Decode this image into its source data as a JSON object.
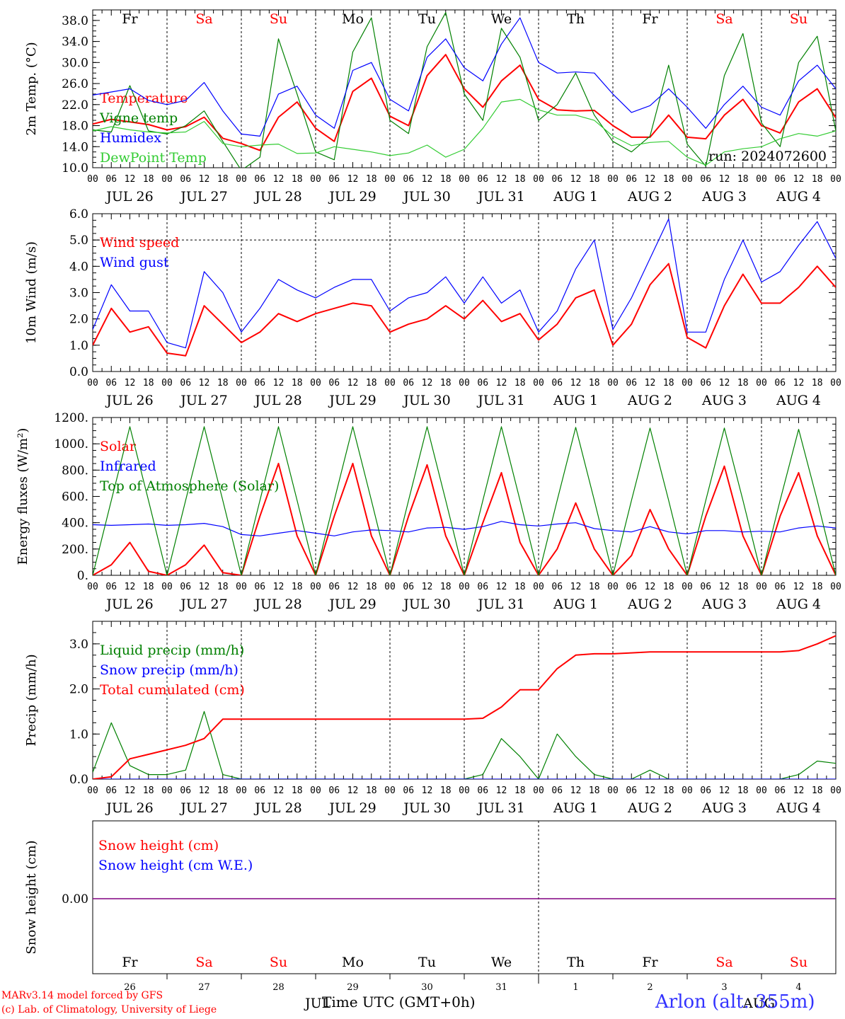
{
  "run_label": "run: 2024072600",
  "day_header": [
    {
      "label": "Fr",
      "weekend": false
    },
    {
      "label": "Sa",
      "weekend": true
    },
    {
      "label": "Su",
      "weekend": true
    },
    {
      "label": "Mo",
      "weekend": false
    },
    {
      "label": "Tu",
      "weekend": false
    },
    {
      "label": "We",
      "weekend": false
    },
    {
      "label": "Th",
      "weekend": false
    },
    {
      "label": "Fr",
      "weekend": false
    },
    {
      "label": "Sa",
      "weekend": true
    },
    {
      "label": "Su",
      "weekend": true
    }
  ],
  "date_labels": [
    "JUL 26",
    "JUL 27",
    "JUL 28",
    "JUL 29",
    "JUL 30",
    "JUL 31",
    "AUG  1",
    "AUG  2",
    "AUG  3",
    "AUG  4"
  ],
  "hour_labels": [
    "00",
    "06",
    "12",
    "18"
  ],
  "bottom_day_numbers": [
    "26",
    "27",
    "28",
    "29",
    "30",
    "31",
    "1",
    "2",
    "3",
    "4"
  ],
  "bottom_month_labels": [
    "JUL",
    "AUG"
  ],
  "xlabel": "Time UTC (GMT+0h)",
  "footer": {
    "line1": "MARv3.14 model forced by GFS",
    "line2": "(c) Lab. of Climatology, University of Liege",
    "station": "Arlon (alt. 355m)"
  },
  "colors": {
    "red": "#ff0000",
    "blue": "#0000ff",
    "green": "#008000",
    "lightgreen": "#33cc33",
    "purple": "#800080"
  },
  "chart_data": [
    {
      "type": "line",
      "ylabel": "2m Temp. (°C)",
      "ylim": [
        10,
        40
      ],
      "yticks": [
        "10.0",
        "14.0",
        "18.0",
        "22.0",
        "26.0",
        "30.0",
        "34.0",
        "38.0"
      ],
      "x_hours": [
        0,
        6,
        12,
        18,
        24,
        30,
        36,
        42,
        48,
        54,
        60,
        66,
        72,
        78,
        84,
        90,
        96,
        102,
        108,
        114,
        120,
        126,
        132,
        138,
        144,
        150,
        156,
        162,
        168,
        174,
        180,
        186,
        192,
        198,
        204,
        210,
        216,
        222,
        228,
        234,
        240
      ],
      "series": [
        {
          "name": "Temperature",
          "color": "red",
          "values": [
            18.3,
            19.2,
            18.7,
            18.2,
            17.2,
            17.8,
            19.6,
            15.6,
            14.6,
            13.3,
            19.6,
            22.5,
            17.5,
            15.0,
            24.5,
            27.0,
            19.8,
            18.0,
            27.5,
            31.5,
            25.0,
            21.5,
            26.5,
            29.5,
            23.0,
            21.0,
            20.8,
            20.9,
            18.0,
            15.8,
            15.8,
            20.0,
            15.8,
            15.5,
            20.0,
            23.0,
            18.0,
            16.6,
            22.5,
            25.0,
            19.5
          ]
        },
        {
          "name": "Vigne temp",
          "color": "green",
          "values": [
            17.2,
            16.8,
            25.6,
            17.0,
            16.4,
            18.0,
            20.8,
            15.0,
            9.5,
            12.0,
            34.5,
            24.0,
            13.0,
            11.5,
            32.0,
            38.5,
            19.0,
            16.5,
            33.0,
            39.5,
            24.0,
            19.0,
            36.5,
            31.0,
            19.0,
            22.0,
            28.0,
            20.0,
            15.0,
            13.0,
            16.0,
            29.5,
            14.5,
            10.3,
            27.5,
            35.5,
            18.5,
            14.0,
            30.0,
            35.0,
            17.0
          ]
        },
        {
          "name": "Humidex",
          "color": "blue",
          "values": [
            23.8,
            24.4,
            25.0,
            22.8,
            22.0,
            22.8,
            26.2,
            20.8,
            16.4,
            16.0,
            24.0,
            25.5,
            20.0,
            17.5,
            28.5,
            30.0,
            23.0,
            20.8,
            31.0,
            34.5,
            29.0,
            26.5,
            33.5,
            38.5,
            30.0,
            28.0,
            28.2,
            28.0,
            24.0,
            20.5,
            21.8,
            25.0,
            21.5,
            17.5,
            22.0,
            25.5,
            21.5,
            20.0,
            26.5,
            29.5,
            25.0
          ]
        },
        {
          "name": "DewPoint Temp",
          "color": "lightgreen",
          "values": [
            17.0,
            17.8,
            17.2,
            16.8,
            16.6,
            16.8,
            18.8,
            14.6,
            14.0,
            14.3,
            14.5,
            12.7,
            12.8,
            14.0,
            13.5,
            13.0,
            12.3,
            12.8,
            14.3,
            12.0,
            13.5,
            17.5,
            22.5,
            23.0,
            21.0,
            20.0,
            20.0,
            19.0,
            16.0,
            14.2,
            14.8,
            15.0,
            12.0,
            10.5,
            13.0,
            13.6,
            14.0,
            15.5,
            16.5,
            16.0,
            17.0
          ]
        }
      ]
    },
    {
      "type": "line",
      "ylabel": "10m Wind (m/s)",
      "ylim": [
        0,
        6
      ],
      "yticks": [
        "0.0",
        "1.0",
        "2.0",
        "3.0",
        "4.0",
        "5.0",
        "6.0"
      ],
      "hline": 5.0,
      "x_hours": [
        0,
        6,
        12,
        18,
        24,
        30,
        36,
        42,
        48,
        54,
        60,
        66,
        72,
        78,
        84,
        90,
        96,
        102,
        108,
        114,
        120,
        126,
        132,
        138,
        144,
        150,
        156,
        162,
        168,
        174,
        180,
        186,
        192,
        198,
        204,
        210,
        216,
        222,
        228,
        234,
        240
      ],
      "series": [
        {
          "name": "Wind speed",
          "color": "red",
          "values": [
            1.0,
            2.4,
            1.5,
            1.7,
            0.7,
            0.6,
            2.5,
            1.8,
            1.1,
            1.5,
            2.2,
            1.9,
            2.2,
            2.4,
            2.6,
            2.5,
            1.5,
            1.8,
            2.0,
            2.5,
            2.0,
            2.7,
            1.9,
            2.2,
            1.2,
            1.8,
            2.8,
            3.1,
            1.0,
            1.8,
            3.3,
            4.1,
            1.3,
            0.9,
            2.5,
            3.7,
            2.6,
            2.6,
            3.2,
            4.0,
            3.2
          ]
        },
        {
          "name": "Wind gust",
          "color": "blue",
          "values": [
            1.6,
            3.3,
            2.3,
            2.3,
            1.1,
            0.9,
            3.8,
            3.0,
            1.5,
            2.4,
            3.5,
            3.1,
            2.8,
            3.2,
            3.5,
            3.5,
            2.3,
            2.8,
            3.0,
            3.6,
            2.6,
            3.6,
            2.6,
            3.1,
            1.5,
            2.3,
            3.9,
            5.0,
            1.6,
            2.8,
            4.3,
            5.8,
            1.5,
            1.5,
            3.5,
            5.0,
            3.4,
            3.8,
            4.8,
            5.7,
            4.3
          ]
        }
      ]
    },
    {
      "type": "line",
      "ylabel": "Energy fluxes (W/m²)",
      "ylim": [
        0,
        1200
      ],
      "yticks": [
        "0.",
        "200.",
        "400.",
        "600.",
        "800.",
        "1000.",
        "1200."
      ],
      "x_hours": [
        0,
        6,
        12,
        18,
        24,
        30,
        36,
        42,
        48,
        54,
        60,
        66,
        72,
        78,
        84,
        90,
        96,
        102,
        108,
        114,
        120,
        126,
        132,
        138,
        144,
        150,
        156,
        162,
        168,
        174,
        180,
        186,
        192,
        198,
        204,
        210,
        216,
        222,
        228,
        234,
        240
      ],
      "series": [
        {
          "name": "Solar",
          "color": "red",
          "values": [
            0,
            80,
            250,
            30,
            0,
            80,
            230,
            20,
            0,
            450,
            850,
            300,
            0,
            450,
            850,
            300,
            0,
            450,
            840,
            300,
            0,
            400,
            780,
            250,
            0,
            200,
            550,
            200,
            0,
            150,
            500,
            200,
            0,
            450,
            830,
            300,
            0,
            450,
            780,
            300,
            0
          ]
        },
        {
          "name": "Infrared",
          "color": "blue",
          "values": [
            385,
            380,
            385,
            390,
            380,
            385,
            395,
            370,
            310,
            300,
            320,
            340,
            320,
            300,
            330,
            345,
            340,
            330,
            360,
            365,
            350,
            370,
            410,
            385,
            375,
            390,
            400,
            355,
            340,
            330,
            370,
            330,
            315,
            340,
            340,
            330,
            335,
            330,
            360,
            375,
            360
          ]
        },
        {
          "name": "Top of Atmosphere (Solar)",
          "color": "green",
          "values": [
            0,
            570,
            1130,
            570,
            0,
            570,
            1130,
            570,
            0,
            570,
            1130,
            570,
            0,
            570,
            1130,
            570,
            0,
            570,
            1130,
            570,
            0,
            570,
            1130,
            570,
            0,
            570,
            1125,
            570,
            0,
            570,
            1120,
            570,
            0,
            570,
            1120,
            570,
            0,
            570,
            1110,
            570,
            0
          ]
        }
      ]
    },
    {
      "type": "line",
      "ylabel": "Precip (mm/h)",
      "ylim": [
        0,
        3.5
      ],
      "yticks": [
        "0.0",
        "1.0",
        "2.0",
        "3.0"
      ],
      "x_hours": [
        0,
        6,
        12,
        18,
        24,
        30,
        36,
        42,
        48,
        54,
        60,
        66,
        72,
        78,
        84,
        90,
        96,
        102,
        108,
        114,
        120,
        126,
        132,
        138,
        144,
        150,
        156,
        162,
        168,
        174,
        180,
        186,
        192,
        198,
        204,
        210,
        216,
        222,
        228,
        234,
        240
      ],
      "series": [
        {
          "name": "Liquid precip (mm/h)",
          "color": "green",
          "values": [
            0.15,
            1.25,
            0.3,
            0.1,
            0.1,
            0.2,
            1.5,
            0.1,
            0,
            0,
            0,
            0,
            0,
            0,
            0,
            0,
            0,
            0,
            0,
            0,
            0,
            0.1,
            0.9,
            0.5,
            0,
            1.0,
            0.5,
            0.1,
            0,
            0,
            0.2,
            0,
            0,
            0,
            0,
            0,
            0,
            0,
            0.1,
            0.4,
            0.35
          ]
        },
        {
          "name": "Snow precip (mm/h)",
          "color": "blue",
          "values": [
            0,
            0,
            0,
            0,
            0,
            0,
            0,
            0,
            0,
            0,
            0,
            0,
            0,
            0,
            0,
            0,
            0,
            0,
            0,
            0,
            0,
            0,
            0,
            0,
            0,
            0,
            0,
            0,
            0,
            0,
            0,
            0,
            0,
            0,
            0,
            0,
            0,
            0,
            0,
            0,
            0
          ]
        },
        {
          "name": "Total cumulated (cm)",
          "color": "red",
          "values": [
            0.0,
            0.05,
            0.45,
            0.55,
            0.65,
            0.75,
            0.9,
            1.33,
            1.33,
            1.33,
            1.33,
            1.33,
            1.33,
            1.33,
            1.33,
            1.33,
            1.33,
            1.33,
            1.33,
            1.33,
            1.33,
            1.35,
            1.6,
            1.98,
            1.98,
            2.45,
            2.75,
            2.78,
            2.78,
            2.8,
            2.82,
            2.82,
            2.82,
            2.82,
            2.82,
            2.82,
            2.82,
            2.82,
            2.85,
            3.0,
            3.18
          ]
        }
      ]
    },
    {
      "type": "line",
      "ylabel": "Snow height (cm)",
      "yticks": [
        "0.00"
      ],
      "series": [
        {
          "name": "Snow height (cm)",
          "color": "red",
          "values": [
            0,
            0
          ]
        },
        {
          "name": "Snow height (cm W.E.)",
          "color": "blue",
          "values": [
            0,
            0
          ]
        }
      ]
    }
  ]
}
